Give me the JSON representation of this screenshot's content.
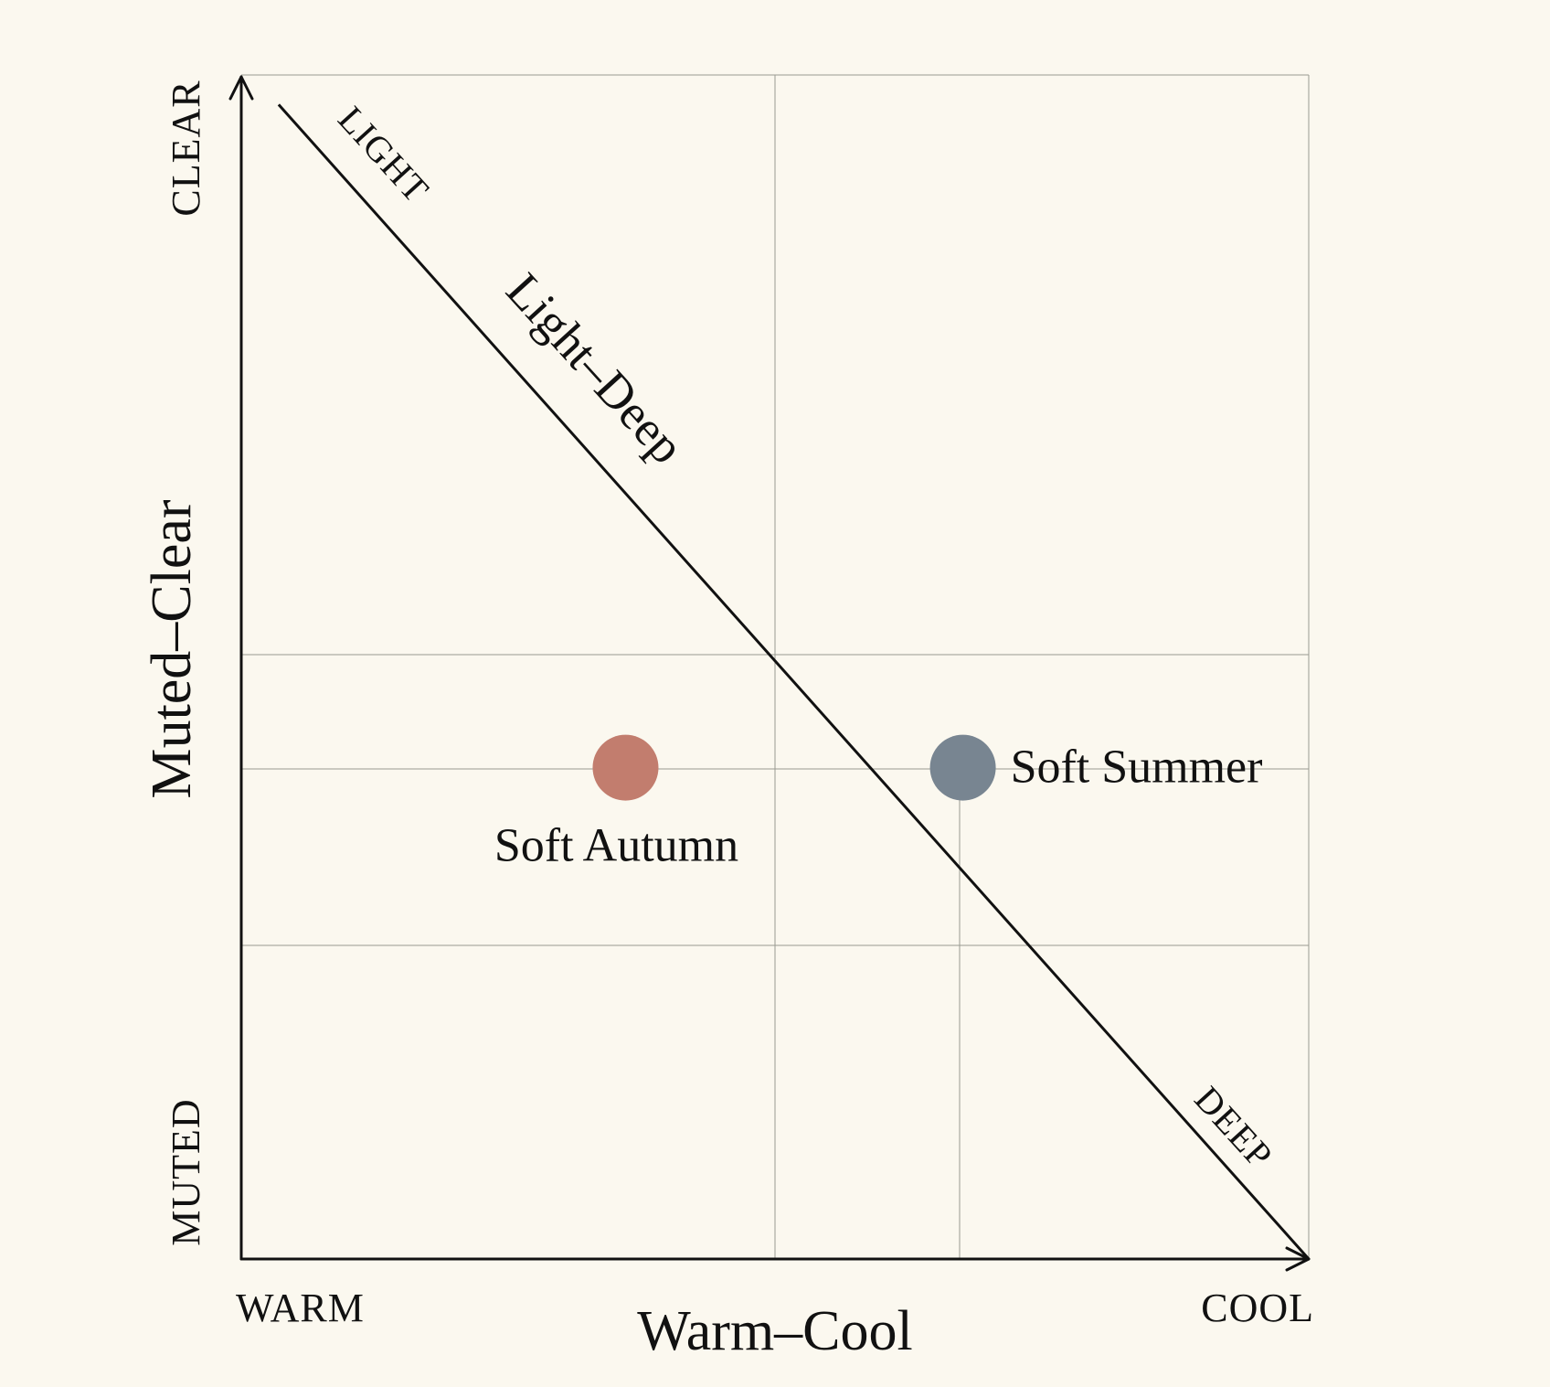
{
  "chart_data": {
    "type": "scatter",
    "x_axis": {
      "title": "Warm–Cool",
      "min_label": "WARM",
      "max_label": "COOL",
      "range": [
        0,
        1
      ]
    },
    "y_axis": {
      "title": "Muted–Clear",
      "min_label": "MUTED",
      "max_label": "CLEAR",
      "range": [
        0,
        1
      ]
    },
    "diagonal_axis": {
      "title": "Light–Deep",
      "start_label": "LIGHT",
      "end_label": "DEEP",
      "from": [
        0.035,
        0.975
      ],
      "to": [
        1.0,
        0.0
      ]
    },
    "grid": true,
    "points": [
      {
        "name": "Soft Autumn",
        "x": 0.36,
        "y": 0.415,
        "color": "#c27d6e"
      },
      {
        "name": "Soft Summer",
        "x": 0.676,
        "y": 0.415,
        "color": "#788591"
      }
    ]
  }
}
